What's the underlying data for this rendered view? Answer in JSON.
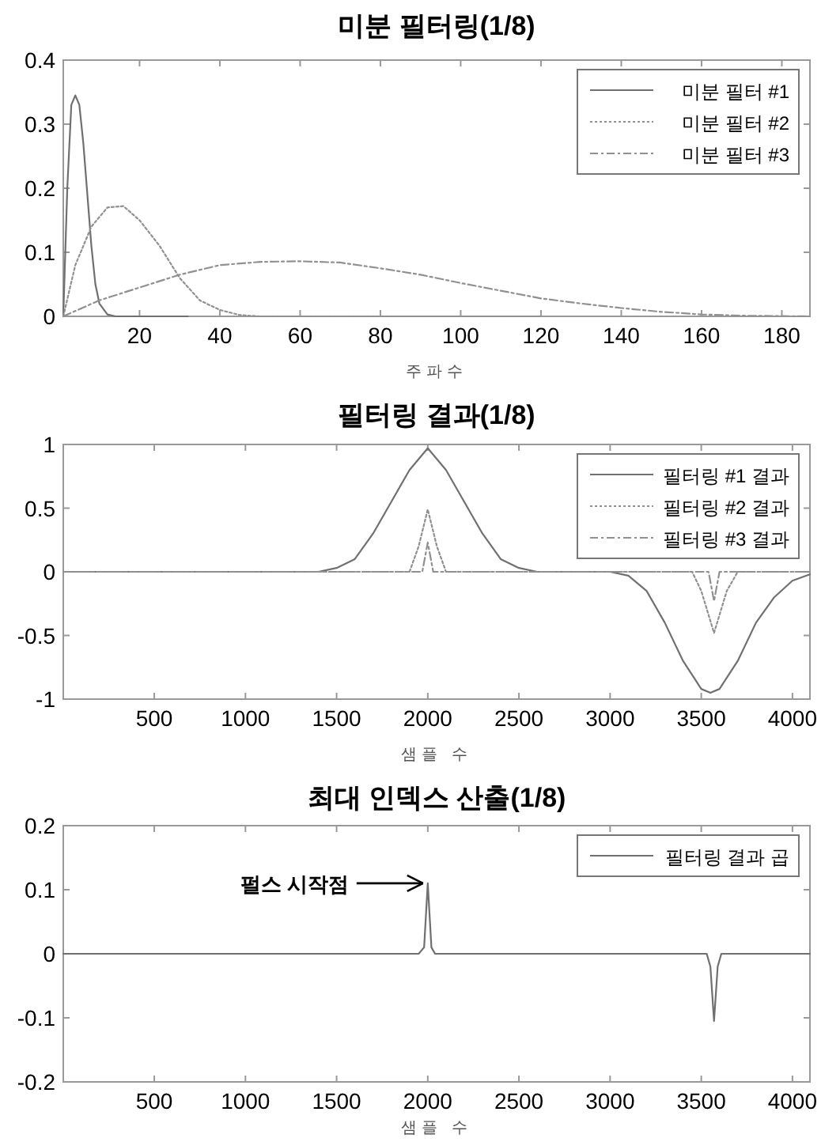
{
  "chart_data": [
    {
      "type": "line",
      "title": "미분 필터링(1/8)",
      "xlabel": "주파수",
      "xlim": [
        1,
        187
      ],
      "xticks": [
        20,
        40,
        60,
        80,
        100,
        120,
        140,
        160,
        180
      ],
      "ylim": [
        0,
        0.4
      ],
      "yticks": [
        0,
        0.1,
        0.2,
        0.3,
        0.4
      ],
      "grid": false,
      "legend": "top right",
      "series": [
        {
          "name": "미분 필터 #1",
          "color": "#707070",
          "line_style": "solid",
          "x": [
            1,
            2,
            3,
            4,
            5,
            6,
            7,
            8,
            9,
            10,
            12,
            14,
            32
          ],
          "values": [
            0,
            0.2,
            0.33,
            0.345,
            0.33,
            0.27,
            0.19,
            0.11,
            0.05,
            0.02,
            0.003,
            0,
            0
          ]
        },
        {
          "name": "미분 필터 #2",
          "color": "#909090",
          "line_style": "dotted",
          "x": [
            1,
            4,
            8,
            12,
            16,
            20,
            25,
            30,
            35,
            40,
            45,
            50,
            120
          ],
          "values": [
            0,
            0.08,
            0.14,
            0.17,
            0.172,
            0.15,
            0.11,
            0.06,
            0.025,
            0.01,
            0.002,
            0,
            0
          ]
        },
        {
          "name": "미분 필터 #3",
          "color": "#909090",
          "line_style": "dashed",
          "x": [
            1,
            10,
            20,
            30,
            40,
            50,
            60,
            70,
            80,
            90,
            100,
            110,
            120,
            130,
            140,
            150,
            160,
            170,
            187
          ],
          "values": [
            0,
            0.025,
            0.045,
            0.065,
            0.08,
            0.085,
            0.086,
            0.084,
            0.075,
            0.065,
            0.052,
            0.04,
            0.028,
            0.02,
            0.013,
            0.007,
            0.003,
            0.001,
            0
          ]
        }
      ]
    },
    {
      "type": "line",
      "title": "필터링 결과(1/8)",
      "xlabel": "샘플 수",
      "xlim": [
        1,
        4096
      ],
      "xticks": [
        500,
        1000,
        1500,
        2000,
        2500,
        3000,
        3500,
        4000
      ],
      "ylim": [
        -1,
        1
      ],
      "yticks": [
        -1,
        -0.5,
        0,
        0.5,
        1
      ],
      "grid": false,
      "legend": "top right",
      "series": [
        {
          "name": "필터링 #1 결과",
          "color": "#707070",
          "line_style": "solid",
          "x": [
            1,
            500,
            1000,
            1400,
            1500,
            1600,
            1700,
            1800,
            1900,
            2000,
            2100,
            2200,
            2300,
            2400,
            2500,
            2600,
            3000,
            3100,
            3200,
            3300,
            3400,
            3500,
            3550,
            3600,
            3700,
            3800,
            3900,
            4000,
            4096
          ],
          "values": [
            0,
            0,
            0,
            0,
            0.03,
            0.1,
            0.3,
            0.55,
            0.8,
            0.97,
            0.8,
            0.55,
            0.3,
            0.1,
            0.03,
            0,
            0,
            -0.03,
            -0.15,
            -0.4,
            -0.7,
            -0.92,
            -0.95,
            -0.92,
            -0.7,
            -0.4,
            -0.2,
            -0.07,
            -0.02
          ]
        },
        {
          "name": "필터링 #2 결과",
          "color": "#909090",
          "line_style": "dotted",
          "x": [
            1,
            1900,
            1950,
            2000,
            2050,
            2100,
            3450,
            3500,
            3570,
            3640,
            3700,
            4096
          ],
          "values": [
            0,
            0,
            0.2,
            0.49,
            0.2,
            0,
            0,
            -0.15,
            -0.48,
            -0.15,
            0,
            0
          ]
        },
        {
          "name": "필터링 #3 결과",
          "color": "#909090",
          "line_style": "dashed",
          "x": [
            1,
            1970,
            2000,
            2030,
            3540,
            3570,
            3600,
            4096
          ],
          "values": [
            0,
            0,
            0.23,
            0,
            0,
            -0.23,
            0,
            0
          ]
        }
      ]
    },
    {
      "type": "line",
      "title": "최대 인덱스 산출(1/8)",
      "xlabel": "샘플 수",
      "xlim": [
        1,
        4096
      ],
      "xticks": [
        500,
        1000,
        1500,
        2000,
        2500,
        3000,
        3500,
        4000
      ],
      "ylim": [
        -0.2,
        0.2
      ],
      "yticks": [
        -0.2,
        -0.1,
        0,
        0.1,
        0.2
      ],
      "grid": false,
      "legend": "top right",
      "annotations": [
        {
          "text": "펄스 시작점",
          "x": 2000,
          "y": 0.11
        }
      ],
      "series": [
        {
          "name": "필터링 결과 곱",
          "color": "#707070",
          "line_style": "solid",
          "x": [
            1,
            1950,
            1980,
            2000,
            2020,
            2040,
            3530,
            3550,
            3570,
            3590,
            3610,
            4096
          ],
          "values": [
            0,
            0,
            0.01,
            0.11,
            0.01,
            0,
            0,
            -0.02,
            -0.105,
            -0.02,
            0,
            0
          ]
        }
      ]
    }
  ]
}
